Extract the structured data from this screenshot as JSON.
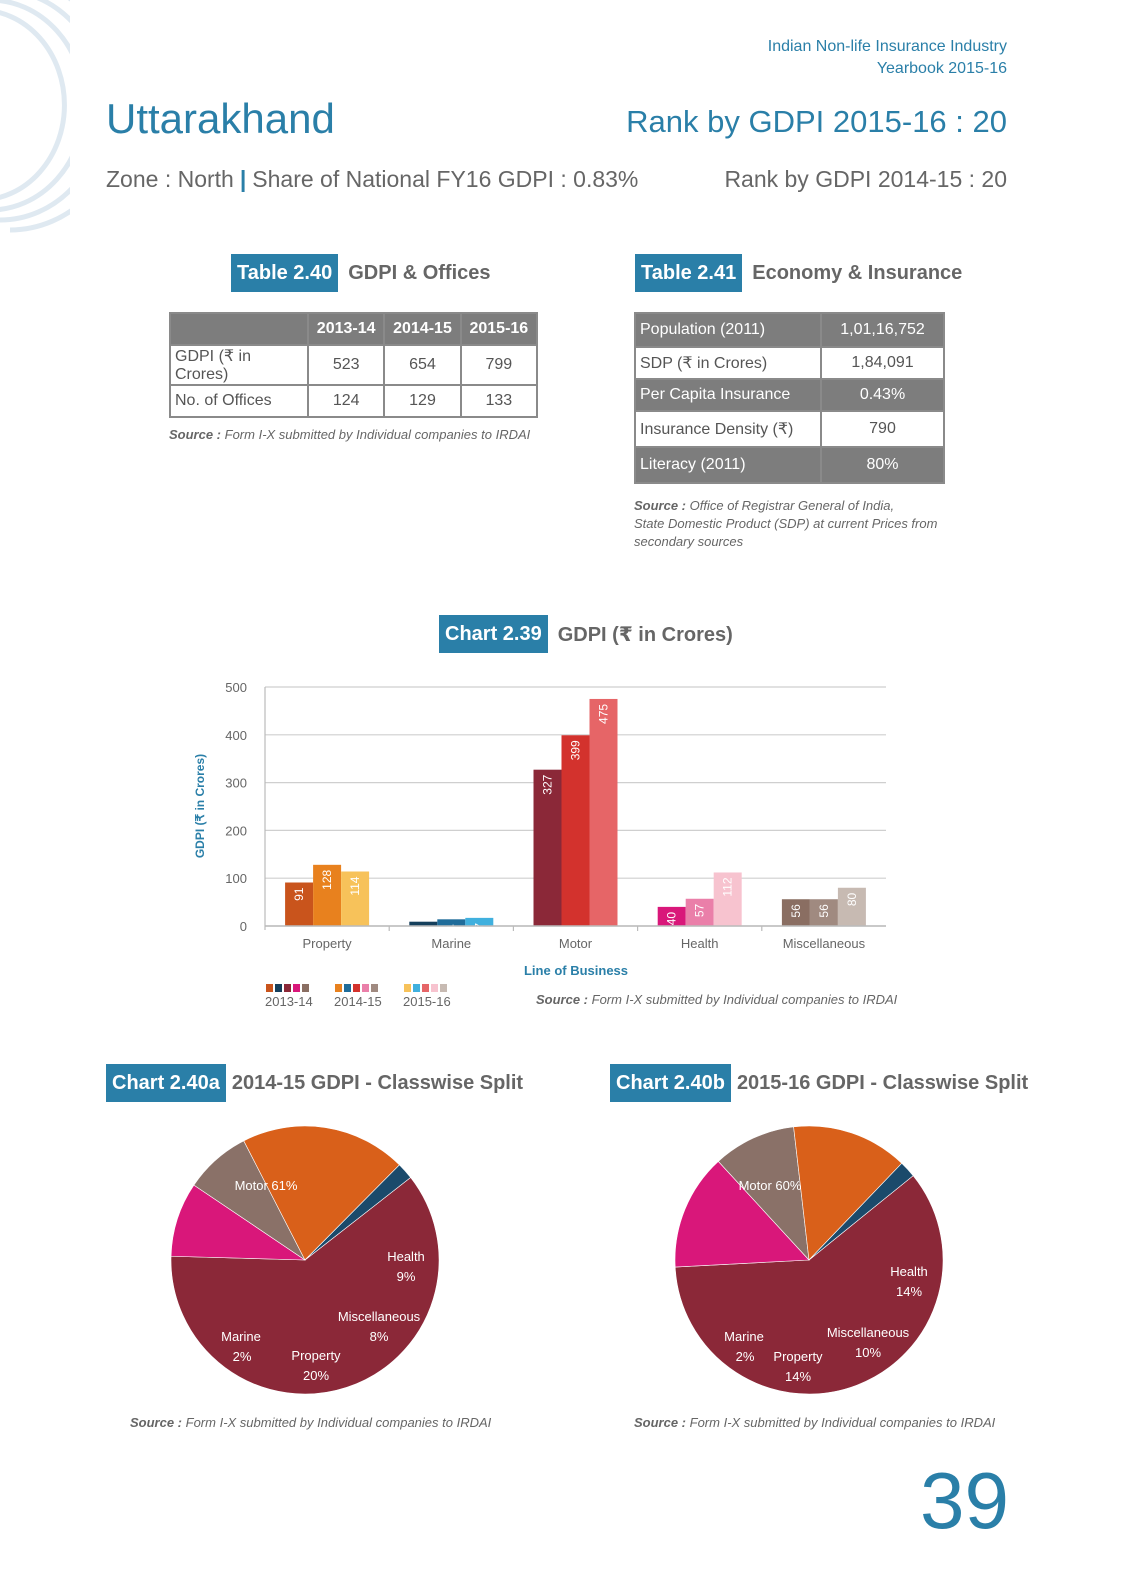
{
  "header": {
    "line1": "Indian Non-life Insurance Industry",
    "line2": "Yearbook 2015-16",
    "state": "Uttarakhand",
    "rank_current": "Rank by GDPI 2015-16 : 20",
    "zone": "Zone : North",
    "separator": "|",
    "share": "Share of National FY16 GDPI : 0.83%",
    "rank_previous": "Rank by GDPI 2014-15 : 20"
  },
  "table240": {
    "tag": "Table 2.40",
    "title": "GDPI & Offices",
    "columns": [
      "2013-14",
      "2014-15",
      "2015-16"
    ],
    "rows": [
      {
        "label": "GDPI (₹ in Crores)",
        "values": [
          "523",
          "654",
          "799"
        ]
      },
      {
        "label": "No. of Offices",
        "values": [
          "124",
          "129",
          "133"
        ]
      }
    ],
    "source_label": "Source :",
    "source_text": "Form I-X submitted by Individual companies to IRDAI"
  },
  "table241": {
    "tag": "Table 2.41",
    "title": "Economy & Insurance",
    "rows": [
      {
        "label": "Population (2011)",
        "value": "1,01,16,752"
      },
      {
        "label": "SDP (₹ in Crores)",
        "value": "1,84,091"
      },
      {
        "label": "Per Capita Insurance",
        "value": "0.43%"
      },
      {
        "label": "Insurance Density (₹)",
        "value": "790"
      },
      {
        "label": "Literacy (2011)",
        "value": "80%"
      }
    ],
    "source_label": "Source :",
    "source_line1": "Office of Registrar General of India,",
    "source_line2": "State Domestic Product (SDP) at current Prices from",
    "source_line3": "secondary sources"
  },
  "chart239": {
    "tag": "Chart 2.39",
    "title": "GDPI (₹ in Crores)",
    "source_label": "Source :",
    "source_text": "Form I-X submitted by Individual companies to IRDAI"
  },
  "chart240a": {
    "tag": "Chart 2.40a",
    "title": "2014-15 GDPI - Classwise Split",
    "source_label": "Source :",
    "source_text": "Form I-X submitted by Individual companies to IRDAI"
  },
  "chart240b": {
    "tag": "Chart 2.40b",
    "title": "2015-16 GDPI - Classwise Split",
    "source_label": "Source :",
    "source_text": "Form I-X submitted by Individual companies to IRDAI"
  },
  "page_number": "39",
  "colors": {
    "accent": "#2a7fa8",
    "motor": "#8b2838",
    "health": "#d9177a",
    "misc": "#8a7168",
    "property": "#d9601a",
    "marine": "#1b4a6b"
  },
  "chart_data": [
    {
      "type": "bar",
      "title": "GDPI (₹ in Crores)",
      "xlabel": "Line of Business",
      "ylabel": "GDPI (₹ in Crores)",
      "ylim": [
        0,
        500
      ],
      "yticks": [
        0,
        100,
        200,
        300,
        400,
        500
      ],
      "grid": true,
      "legend_position": "bottom-left",
      "categories": [
        "Property",
        "Marine",
        "Motor",
        "Health",
        "Miscellaneous"
      ],
      "series": [
        {
          "name": "2013-14",
          "values": [
            91,
            9,
            327,
            40,
            56
          ],
          "colors": [
            "#c9541c",
            "#153f5c",
            "#8b2838",
            "#d9177a",
            "#8a6e62"
          ]
        },
        {
          "name": "2014-15",
          "values": [
            128,
            14,
            399,
            57,
            56
          ],
          "colors": [
            "#e8811e",
            "#1f6c9a",
            "#d3322d",
            "#ea7fa9",
            "#a08a80"
          ]
        },
        {
          "name": "2015-16",
          "values": [
            114,
            17,
            475,
            112,
            80
          ],
          "colors": [
            "#f7c25a",
            "#40b0de",
            "#e66567",
            "#f7c3cf",
            "#c7bab2"
          ]
        }
      ]
    },
    {
      "type": "pie",
      "title": "2014-15 GDPI - Classwise Split",
      "slices": [
        {
          "label": "Motor",
          "pct": "61%",
          "value": 61,
          "color": "#8b2838"
        },
        {
          "label": "Health",
          "pct": "9%",
          "value": 9,
          "color": "#d9177a"
        },
        {
          "label": "Miscellaneous",
          "pct": "8%",
          "value": 8,
          "color": "#8a7168"
        },
        {
          "label": "Property",
          "pct": "20%",
          "value": 20,
          "color": "#d9601a"
        },
        {
          "label": "Marine",
          "pct": "2%",
          "value": 2,
          "color": "#1b4a6b"
        }
      ]
    },
    {
      "type": "pie",
      "title": "2015-16 GDPI - Classwise Split",
      "slices": [
        {
          "label": "Motor",
          "pct": "60%",
          "value": 60,
          "color": "#8b2838"
        },
        {
          "label": "Health",
          "pct": "14%",
          "value": 14,
          "color": "#d9177a"
        },
        {
          "label": "Miscellaneous",
          "pct": "10%",
          "value": 10,
          "color": "#8a7168"
        },
        {
          "label": "Property",
          "pct": "14%",
          "value": 14,
          "color": "#d9601a"
        },
        {
          "label": "Marine",
          "pct": "2%",
          "value": 2,
          "color": "#1b4a6b"
        }
      ]
    }
  ]
}
